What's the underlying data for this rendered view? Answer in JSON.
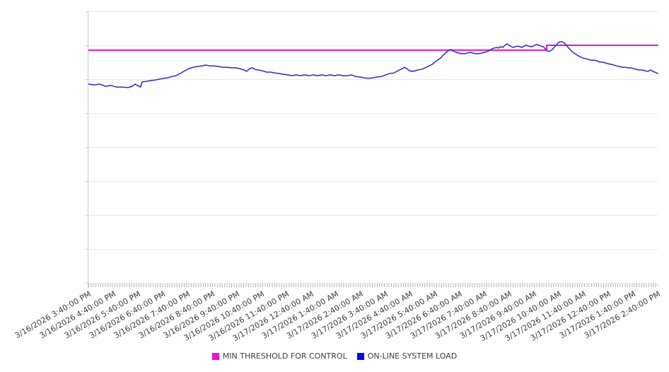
{
  "page": {
    "background": "#ffffff"
  },
  "legend": {
    "items": [
      {
        "label": "MIN THRESHOLD FOR CONTROL",
        "color": "#ed0fe0"
      },
      {
        "label": "ON-LINE SYSTEM LOAD",
        "color": "#0a0ae6"
      }
    ]
  },
  "chart_data": {
    "type": "line",
    "title": "",
    "xlabel": "",
    "ylabel": "",
    "y_axis_labels_visible": false,
    "y_units": "unlabeled (0-100 scale of plot height)",
    "y_range": [
      0,
      100
    ],
    "y_gridline_values": [
      0,
      12.5,
      25,
      37.5,
      50,
      62.5,
      75,
      87.5,
      100
    ],
    "x_range_hours": [
      0,
      23
    ],
    "grid": true,
    "legend_position": "bottom",
    "x_categories": [
      "3/16/2026 3:40:00 PM",
      "3/16/2026 4:40:00 PM",
      "3/16/2026 5:40:00 PM",
      "3/16/2026 6:40:00 PM",
      "3/16/2026 7:40:00 PM",
      "3/16/2026 8:40:00 PM",
      "3/16/2026 9:40:00 PM",
      "3/16/2026 10:40:00 PM",
      "3/16/2026 11:40:00 PM",
      "3/17/2026 12:40:00 AM",
      "3/17/2026 1:40:00 AM",
      "3/17/2026 2:40:00 AM",
      "3/17/2026 3:40:00 AM",
      "3/17/2026 4:40:00 AM",
      "3/17/2026 5:40:00 AM",
      "3/17/2026 6:40:00 AM",
      "3/17/2026 7:40:00 AM",
      "3/17/2026 8:40:00 AM",
      "3/17/2026 9:40:00 AM",
      "3/17/2026 10:40:00 AM",
      "3/17/2026 11:40:00 AM",
      "3/17/2026 12:40:00 PM",
      "3/17/2026 1:40:00 PM",
      "3/17/2026 2:40:00 PM"
    ],
    "series": [
      {
        "name": "MIN THRESHOLD FOR CONTROL",
        "color": "#ed0fe0",
        "stroke_width": 2,
        "points": [
          [
            0,
            85.7
          ],
          [
            18.51,
            85.7
          ],
          [
            18.51,
            87.5
          ],
          [
            23,
            87.5
          ]
        ]
      },
      {
        "name": "ON-LINE SYSTEM LOAD",
        "color": "#2929c8",
        "stroke_width": 1.5,
        "points": [
          [
            0,
            73.2
          ],
          [
            0.23,
            72.9
          ],
          [
            0.46,
            73.2
          ],
          [
            0.69,
            72.4
          ],
          [
            0.91,
            72.7
          ],
          [
            1.14,
            72.1
          ],
          [
            1.37,
            72.1
          ],
          [
            1.6,
            71.9
          ],
          [
            1.77,
            72.4
          ],
          [
            1.89,
            73.2
          ],
          [
            1.97,
            72.7
          ],
          [
            2.06,
            72.4
          ],
          [
            2.11,
            72.1
          ],
          [
            2.17,
            74
          ],
          [
            2.34,
            74.2
          ],
          [
            2.51,
            74.5
          ],
          [
            2.69,
            74.7
          ],
          [
            2.86,
            75
          ],
          [
            3.03,
            75.3
          ],
          [
            3.2,
            75.5
          ],
          [
            3.37,
            76
          ],
          [
            3.54,
            76.3
          ],
          [
            3.71,
            77.1
          ],
          [
            3.89,
            78.1
          ],
          [
            4.06,
            78.9
          ],
          [
            4.23,
            79.4
          ],
          [
            4.4,
            79.7
          ],
          [
            4.57,
            79.9
          ],
          [
            4.74,
            80.2
          ],
          [
            4.91,
            79.9
          ],
          [
            5.09,
            79.9
          ],
          [
            5.26,
            79.7
          ],
          [
            5.43,
            79.4
          ],
          [
            5.6,
            79.4
          ],
          [
            5.77,
            79.2
          ],
          [
            5.94,
            79.2
          ],
          [
            6.11,
            78.9
          ],
          [
            6.29,
            78.4
          ],
          [
            6.4,
            77.9
          ],
          [
            6.51,
            78.9
          ],
          [
            6.63,
            79.2
          ],
          [
            6.74,
            78.6
          ],
          [
            6.86,
            78.4
          ],
          [
            7.03,
            78.1
          ],
          [
            7.2,
            77.6
          ],
          [
            7.37,
            77.6
          ],
          [
            7.54,
            77.3
          ],
          [
            7.71,
            77.1
          ],
          [
            7.89,
            76.8
          ],
          [
            8.06,
            76.6
          ],
          [
            8.23,
            76.3
          ],
          [
            8.4,
            76.6
          ],
          [
            8.57,
            76.3
          ],
          [
            8.74,
            76.6
          ],
          [
            8.91,
            76.3
          ],
          [
            9.09,
            76.6
          ],
          [
            9.26,
            76.3
          ],
          [
            9.43,
            76.6
          ],
          [
            9.6,
            76.3
          ],
          [
            9.77,
            76.6
          ],
          [
            9.94,
            76.3
          ],
          [
            10.11,
            76.6
          ],
          [
            10.29,
            76.3
          ],
          [
            10.46,
            76.3
          ],
          [
            10.63,
            76.6
          ],
          [
            10.8,
            76
          ],
          [
            10.97,
            75.8
          ],
          [
            11.14,
            75.5
          ],
          [
            11.31,
            75.3
          ],
          [
            11.49,
            75.5
          ],
          [
            11.66,
            75.8
          ],
          [
            11.83,
            76
          ],
          [
            12,
            76.6
          ],
          [
            12.17,
            77.1
          ],
          [
            12.34,
            77.3
          ],
          [
            12.46,
            77.9
          ],
          [
            12.57,
            78.4
          ],
          [
            12.69,
            78.9
          ],
          [
            12.77,
            79.4
          ],
          [
            12.86,
            78.9
          ],
          [
            12.97,
            78.1
          ],
          [
            13.09,
            77.9
          ],
          [
            13.2,
            78.1
          ],
          [
            13.31,
            78.4
          ],
          [
            13.43,
            78.6
          ],
          [
            13.54,
            78.9
          ],
          [
            13.66,
            79.4
          ],
          [
            13.77,
            79.9
          ],
          [
            13.89,
            80.5
          ],
          [
            14,
            81.3
          ],
          [
            14.11,
            82
          ],
          [
            14.23,
            82.8
          ],
          [
            14.34,
            83.9
          ],
          [
            14.46,
            84.9
          ],
          [
            14.57,
            85.7
          ],
          [
            14.66,
            85.9
          ],
          [
            14.74,
            85.4
          ],
          [
            14.86,
            84.9
          ],
          [
            14.97,
            84.6
          ],
          [
            15.09,
            84.4
          ],
          [
            15.2,
            84.4
          ],
          [
            15.31,
            84.6
          ],
          [
            15.43,
            84.9
          ],
          [
            15.54,
            84.6
          ],
          [
            15.66,
            84.4
          ],
          [
            15.77,
            84.4
          ],
          [
            15.89,
            84.6
          ],
          [
            16,
            84.9
          ],
          [
            16.11,
            85.2
          ],
          [
            16.23,
            85.7
          ],
          [
            16.31,
            86.2
          ],
          [
            16.4,
            86.5
          ],
          [
            16.49,
            86.7
          ],
          [
            16.57,
            86.5
          ],
          [
            16.66,
            87
          ],
          [
            16.74,
            86.7
          ],
          [
            16.83,
            87.5
          ],
          [
            16.91,
            88
          ],
          [
            17,
            87.5
          ],
          [
            17.09,
            87
          ],
          [
            17.17,
            86.7
          ],
          [
            17.26,
            87
          ],
          [
            17.34,
            87.2
          ],
          [
            17.43,
            87
          ],
          [
            17.51,
            86.7
          ],
          [
            17.6,
            87.2
          ],
          [
            17.69,
            87.5
          ],
          [
            17.77,
            87.2
          ],
          [
            17.86,
            87
          ],
          [
            17.94,
            87
          ],
          [
            18.03,
            87.5
          ],
          [
            18.11,
            87.8
          ],
          [
            18.2,
            87.5
          ],
          [
            18.29,
            87.2
          ],
          [
            18.37,
            87
          ],
          [
            18.46,
            86.2
          ],
          [
            18.54,
            85.4
          ],
          [
            18.63,
            85.2
          ],
          [
            18.71,
            85.7
          ],
          [
            18.8,
            86.5
          ],
          [
            18.89,
            87.5
          ],
          [
            18.97,
            88.3
          ],
          [
            19.06,
            88.8
          ],
          [
            19.14,
            88.8
          ],
          [
            19.23,
            88.3
          ],
          [
            19.31,
            87.5
          ],
          [
            19.4,
            86.5
          ],
          [
            19.49,
            85.7
          ],
          [
            19.57,
            84.9
          ],
          [
            19.66,
            84.4
          ],
          [
            19.74,
            83.9
          ],
          [
            19.86,
            83.3
          ],
          [
            19.97,
            82.8
          ],
          [
            20.09,
            82.6
          ],
          [
            20.2,
            82.3
          ],
          [
            20.31,
            82
          ],
          [
            20.43,
            82
          ],
          [
            20.54,
            81.8
          ],
          [
            20.66,
            81.3
          ],
          [
            20.77,
            81.3
          ],
          [
            20.89,
            81
          ],
          [
            21,
            80.7
          ],
          [
            21.11,
            80.5
          ],
          [
            21.23,
            80.2
          ],
          [
            21.34,
            79.9
          ],
          [
            21.46,
            79.7
          ],
          [
            21.57,
            79.4
          ],
          [
            21.69,
            79.4
          ],
          [
            21.8,
            79.2
          ],
          [
            21.91,
            79.2
          ],
          [
            22.03,
            78.9
          ],
          [
            22.14,
            78.6
          ],
          [
            22.26,
            78.4
          ],
          [
            22.37,
            78.4
          ],
          [
            22.49,
            78.1
          ],
          [
            22.6,
            77.9
          ],
          [
            22.71,
            78.4
          ],
          [
            22.8,
            77.9
          ],
          [
            22.89,
            77.6
          ],
          [
            23,
            77.1
          ]
        ]
      }
    ]
  }
}
